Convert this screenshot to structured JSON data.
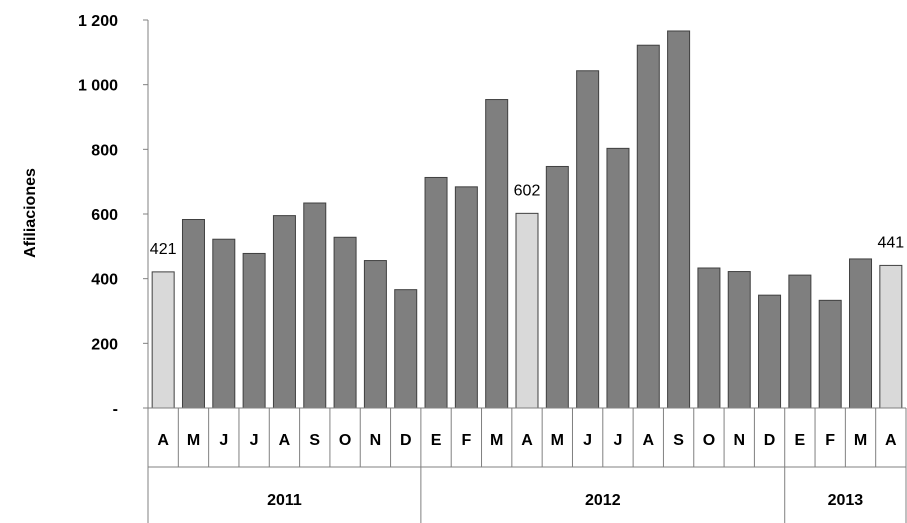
{
  "chart_data": {
    "type": "bar",
    "ylabel": "Afiliaciones",
    "xlabel": "",
    "ylim": [
      0,
      1200
    ],
    "yticks": [
      {
        "value": 0,
        "label": "-"
      },
      {
        "value": 200,
        "label": "200"
      },
      {
        "value": 400,
        "label": "400"
      },
      {
        "value": 600,
        "label": "600"
      },
      {
        "value": 800,
        "label": "800"
      },
      {
        "value": 1000,
        "label": "1 000"
      },
      {
        "value": 1200,
        "label": "1 200"
      }
    ],
    "categories": [
      "A",
      "M",
      "J",
      "J",
      "A",
      "S",
      "O",
      "N",
      "D",
      "E",
      "F",
      "M",
      "A",
      "M",
      "J",
      "J",
      "A",
      "S",
      "O",
      "N",
      "D",
      "E",
      "F",
      "M",
      "A"
    ],
    "values": [
      421,
      583,
      522,
      478,
      595,
      634,
      528,
      456,
      366,
      713,
      684,
      954,
      602,
      747,
      1043,
      803,
      1122,
      1166,
      433,
      422,
      349,
      411,
      333,
      461,
      441
    ],
    "highlighted": [
      0,
      12,
      24
    ],
    "data_labels": [
      {
        "index": 0,
        "text": "421"
      },
      {
        "index": 12,
        "text": "602"
      },
      {
        "index": 24,
        "text": "441"
      }
    ],
    "groups": [
      {
        "label": "2011",
        "start": 0,
        "end": 8
      },
      {
        "label": "2012",
        "start": 9,
        "end": 20
      },
      {
        "label": "2013",
        "start": 21,
        "end": 24
      }
    ],
    "colors": {
      "bar": "#7f7f7f",
      "highlight": "#d9d9d9",
      "bar_stroke": "#404040",
      "axis": "#808080"
    }
  }
}
